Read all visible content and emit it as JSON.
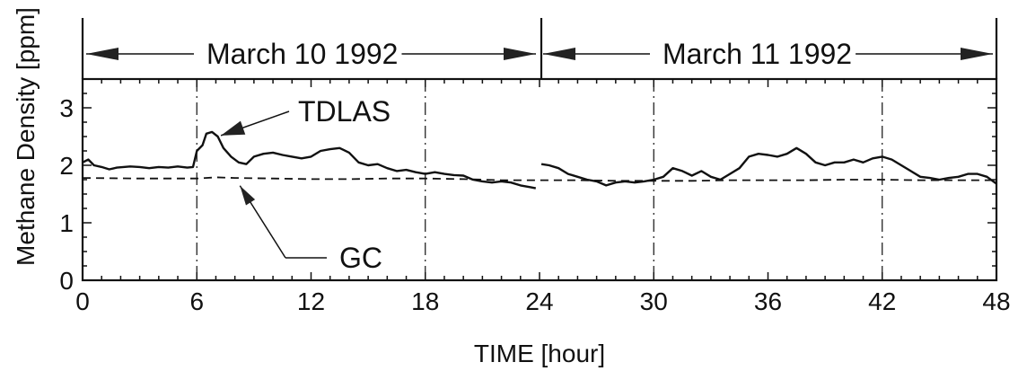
{
  "chart_data": {
    "type": "line",
    "xlabel": "TIME [hour]",
    "ylabel": "Methane Density [ppm]",
    "xlim": [
      0,
      48
    ],
    "ylim": [
      0,
      3.5
    ],
    "x_ticks": [
      0,
      6,
      12,
      18,
      24,
      30,
      36,
      42,
      48
    ],
    "y_ticks": [
      0,
      1,
      2,
      3
    ],
    "grid": "vertical dash-dot lines at 6, 18, 30, 42",
    "grid_x": [
      6,
      18,
      30,
      42
    ],
    "date_bands": [
      {
        "label": "March 10 1992",
        "start": 0,
        "end": 24
      },
      {
        "label": "March 11 1992",
        "start": 24,
        "end": 48
      }
    ],
    "series": [
      {
        "name": "TDLAS",
        "style": "solid",
        "segments": [
          [
            [
              0,
              2.05
            ],
            [
              0.3,
              2.1
            ],
            [
              0.6,
              2.0
            ],
            [
              1,
              1.97
            ],
            [
              1.4,
              1.93
            ],
            [
              1.8,
              1.96
            ],
            [
              2.5,
              1.98
            ],
            [
              3,
              1.97
            ],
            [
              3.5,
              1.95
            ],
            [
              4,
              1.97
            ],
            [
              4.5,
              1.96
            ],
            [
              5,
              1.98
            ],
            [
              5.5,
              1.96
            ],
            [
              5.8,
              1.97
            ],
            [
              6,
              2.25
            ],
            [
              6.3,
              2.35
            ],
            [
              6.5,
              2.55
            ],
            [
              6.8,
              2.58
            ],
            [
              7.1,
              2.5
            ],
            [
              7.4,
              2.3
            ],
            [
              7.8,
              2.15
            ],
            [
              8.2,
              2.05
            ],
            [
              8.6,
              2.02
            ],
            [
              9,
              2.15
            ],
            [
              9.5,
              2.2
            ],
            [
              10,
              2.22
            ],
            [
              10.5,
              2.18
            ],
            [
              11,
              2.15
            ],
            [
              11.5,
              2.12
            ],
            [
              12,
              2.15
            ],
            [
              12.5,
              2.25
            ],
            [
              13,
              2.28
            ],
            [
              13.5,
              2.3
            ],
            [
              14,
              2.22
            ],
            [
              14.5,
              2.05
            ],
            [
              15,
              2.0
            ],
            [
              15.5,
              2.02
            ],
            [
              16,
              1.95
            ],
            [
              16.5,
              1.9
            ],
            [
              17,
              1.92
            ],
            [
              17.5,
              1.88
            ],
            [
              18,
              1.85
            ],
            [
              18.5,
              1.88
            ],
            [
              19,
              1.85
            ],
            [
              19.5,
              1.83
            ],
            [
              20,
              1.82
            ],
            [
              20.5,
              1.75
            ],
            [
              21,
              1.72
            ],
            [
              21.5,
              1.7
            ],
            [
              22,
              1.72
            ],
            [
              22.5,
              1.7
            ],
            [
              23,
              1.65
            ],
            [
              23.5,
              1.62
            ],
            [
              23.8,
              1.6
            ]
          ],
          [
            [
              24.1,
              2.02
            ],
            [
              24.5,
              2.0
            ],
            [
              25,
              1.95
            ],
            [
              25.5,
              1.85
            ],
            [
              26,
              1.8
            ],
            [
              26.5,
              1.75
            ],
            [
              27,
              1.72
            ],
            [
              27.5,
              1.65
            ],
            [
              28,
              1.7
            ],
            [
              28.5,
              1.72
            ],
            [
              29,
              1.7
            ],
            [
              29.5,
              1.72
            ],
            [
              30,
              1.75
            ],
            [
              30.5,
              1.8
            ],
            [
              31,
              1.95
            ],
            [
              31.5,
              1.9
            ],
            [
              32,
              1.82
            ],
            [
              32.5,
              1.9
            ],
            [
              33,
              1.8
            ],
            [
              33.5,
              1.75
            ],
            [
              34,
              1.85
            ],
            [
              34.5,
              1.95
            ],
            [
              35,
              2.15
            ],
            [
              35.5,
              2.2
            ],
            [
              36,
              2.18
            ],
            [
              36.5,
              2.15
            ],
            [
              37,
              2.2
            ],
            [
              37.5,
              2.3
            ],
            [
              38,
              2.2
            ],
            [
              38.5,
              2.05
            ],
            [
              39,
              2.0
            ],
            [
              39.5,
              2.05
            ],
            [
              40,
              2.05
            ],
            [
              40.5,
              2.1
            ],
            [
              41,
              2.05
            ],
            [
              41.5,
              2.12
            ],
            [
              42,
              2.15
            ],
            [
              42.5,
              2.1
            ],
            [
              43,
              2.0
            ],
            [
              43.5,
              1.9
            ],
            [
              44,
              1.8
            ],
            [
              44.5,
              1.78
            ],
            [
              45,
              1.75
            ],
            [
              45.5,
              1.78
            ],
            [
              46,
              1.8
            ],
            [
              46.5,
              1.85
            ],
            [
              47,
              1.85
            ],
            [
              47.5,
              1.8
            ],
            [
              48,
              1.68
            ]
          ]
        ]
      },
      {
        "name": "GC",
        "style": "dashed",
        "segments": [
          [
            [
              0,
              1.78
            ],
            [
              3,
              1.77
            ],
            [
              6,
              1.77
            ],
            [
              7,
              1.79
            ],
            [
              8,
              1.78
            ],
            [
              10,
              1.77
            ],
            [
              12,
              1.76
            ],
            [
              14,
              1.76
            ],
            [
              16,
              1.77
            ],
            [
              18,
              1.77
            ],
            [
              20,
              1.76
            ],
            [
              22,
              1.74
            ],
            [
              24,
              1.74
            ],
            [
              26,
              1.74
            ],
            [
              28,
              1.73
            ],
            [
              30,
              1.73
            ],
            [
              32,
              1.73
            ],
            [
              34,
              1.74
            ],
            [
              36,
              1.74
            ],
            [
              38,
              1.74
            ],
            [
              40,
              1.75
            ],
            [
              42,
              1.75
            ],
            [
              44,
              1.74
            ],
            [
              46,
              1.74
            ],
            [
              48,
              1.74
            ]
          ]
        ]
      }
    ],
    "annotations": [
      {
        "text": "TDLAS",
        "points_to": [
          6.7,
          2.58
        ]
      },
      {
        "text": "GC",
        "points_to": [
          7.7,
          1.77
        ]
      }
    ]
  }
}
